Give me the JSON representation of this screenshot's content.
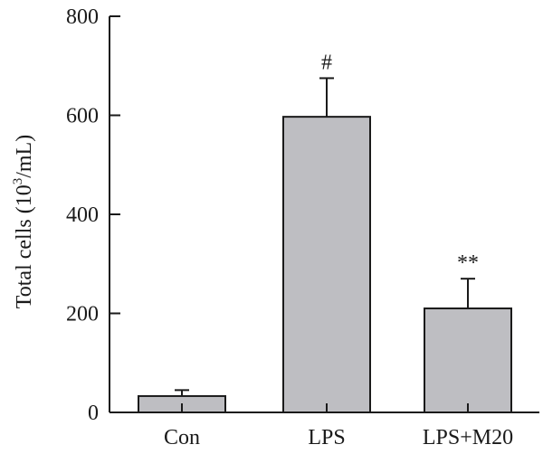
{
  "chart_data": {
    "type": "bar",
    "categories": [
      "Con",
      "LPS",
      "LPS+M20"
    ],
    "values": [
      33,
      597,
      210
    ],
    "errors": [
      12,
      78,
      60
    ],
    "significance": [
      "",
      "#",
      "**"
    ],
    "ylabel": "Total cells (10",
    "ylabel_superscript": "3",
    "ylabel_tail": "/mL)",
    "ylim": [
      0,
      800
    ],
    "yticks": [
      "0",
      "200",
      "400",
      "600",
      "800"
    ],
    "ytick_values": [
      0,
      200,
      400,
      600,
      800
    ],
    "grid": false,
    "colors": {
      "bar": "#bebec2",
      "axis": "#1a1a1a"
    }
  }
}
